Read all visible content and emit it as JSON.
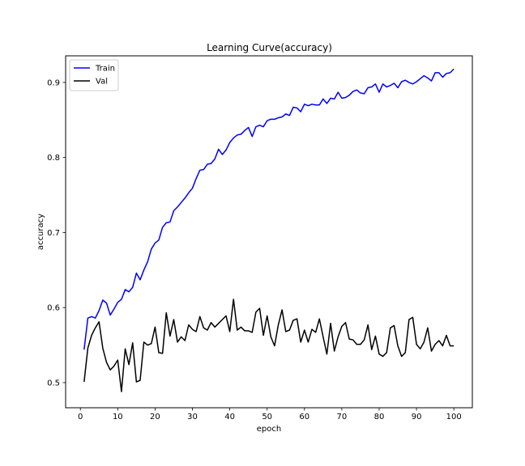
{
  "chart_data": {
    "type": "line",
    "title": "Learning Curve(accuracy)",
    "xlabel": "epoch",
    "ylabel": "accuracy",
    "xlim": [
      -3.95,
      104.95
    ],
    "ylim": [
      0.4665,
      0.9355
    ],
    "xticks": [
      0,
      10,
      20,
      30,
      40,
      50,
      60,
      70,
      80,
      90,
      100
    ],
    "yticks": [
      0.5,
      0.6,
      0.7,
      0.8,
      0.9
    ],
    "ytick_labels": [
      "0.5",
      "0.6",
      "0.7",
      "0.8",
      "0.9"
    ],
    "grid": false,
    "legend_position": "top-left",
    "x": [
      1,
      2,
      3,
      4,
      5,
      6,
      7,
      8,
      9,
      10,
      11,
      12,
      13,
      14,
      15,
      16,
      17,
      18,
      19,
      20,
      21,
      22,
      23,
      24,
      25,
      26,
      27,
      28,
      29,
      30,
      31,
      32,
      33,
      34,
      35,
      36,
      37,
      38,
      39,
      40,
      41,
      42,
      43,
      44,
      45,
      46,
      47,
      48,
      49,
      50,
      51,
      52,
      53,
      54,
      55,
      56,
      57,
      58,
      59,
      60,
      61,
      62,
      63,
      64,
      65,
      66,
      67,
      68,
      69,
      70,
      71,
      72,
      73,
      74,
      75,
      76,
      77,
      78,
      79,
      80,
      81,
      82,
      83,
      84,
      85,
      86,
      87,
      88,
      89,
      90,
      91,
      92,
      93,
      94,
      95,
      96,
      97,
      98,
      99,
      100
    ],
    "series": [
      {
        "name": "Train",
        "color": "#0000ff",
        "values": [
          0.544,
          0.586,
          0.588,
          0.586,
          0.596,
          0.61,
          0.606,
          0.59,
          0.598,
          0.607,
          0.611,
          0.624,
          0.621,
          0.627,
          0.646,
          0.637,
          0.65,
          0.661,
          0.678,
          0.686,
          0.69,
          0.707,
          0.713,
          0.714,
          0.729,
          0.734,
          0.74,
          0.746,
          0.753,
          0.759,
          0.772,
          0.783,
          0.784,
          0.791,
          0.792,
          0.798,
          0.811,
          0.804,
          0.81,
          0.82,
          0.826,
          0.83,
          0.831,
          0.836,
          0.84,
          0.828,
          0.841,
          0.843,
          0.841,
          0.849,
          0.851,
          0.851,
          0.853,
          0.854,
          0.858,
          0.856,
          0.867,
          0.866,
          0.861,
          0.871,
          0.869,
          0.871,
          0.87,
          0.87,
          0.878,
          0.872,
          0.879,
          0.878,
          0.887,
          0.879,
          0.88,
          0.883,
          0.888,
          0.89,
          0.886,
          0.885,
          0.893,
          0.894,
          0.898,
          0.887,
          0.898,
          0.894,
          0.896,
          0.899,
          0.893,
          0.901,
          0.903,
          0.9,
          0.898,
          0.901,
          0.905,
          0.909,
          0.906,
          0.902,
          0.913,
          0.913,
          0.907,
          0.912,
          0.913,
          0.918
        ]
      },
      {
        "name": "Val",
        "color": "#000000",
        "values": [
          0.501,
          0.546,
          0.563,
          0.573,
          0.581,
          0.546,
          0.527,
          0.517,
          0.522,
          0.53,
          0.488,
          0.545,
          0.524,
          0.553,
          0.501,
          0.503,
          0.554,
          0.55,
          0.552,
          0.574,
          0.54,
          0.539,
          0.593,
          0.562,
          0.584,
          0.554,
          0.561,
          0.556,
          0.577,
          0.571,
          0.568,
          0.588,
          0.573,
          0.57,
          0.58,
          0.574,
          0.579,
          0.584,
          0.589,
          0.568,
          0.611,
          0.57,
          0.574,
          0.569,
          0.569,
          0.567,
          0.594,
          0.599,
          0.563,
          0.589,
          0.561,
          0.549,
          0.577,
          0.597,
          0.568,
          0.57,
          0.583,
          0.585,
          0.554,
          0.57,
          0.554,
          0.571,
          0.567,
          0.585,
          0.561,
          0.538,
          0.579,
          0.542,
          0.561,
          0.575,
          0.58,
          0.558,
          0.557,
          0.551,
          0.551,
          0.557,
          0.577,
          0.544,
          0.562,
          0.538,
          0.535,
          0.54,
          0.573,
          0.576,
          0.549,
          0.535,
          0.54,
          0.584,
          0.587,
          0.551,
          0.545,
          0.554,
          0.573,
          0.542,
          0.551,
          0.556,
          0.549,
          0.563,
          0.549,
          0.549
        ]
      }
    ]
  }
}
